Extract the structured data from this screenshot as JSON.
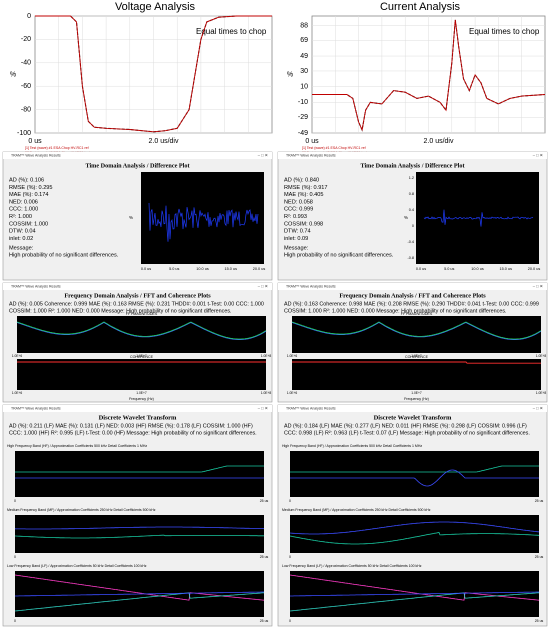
{
  "voltage_plot": {
    "title": "Voltage Analysis",
    "annotation": "Equal times to chop",
    "y_unit": "%",
    "x_start": "0 us",
    "x_div": "2.0 us/div",
    "legend": [
      "[1] Test (wave) #1 ESA Chop HV-RC1 ref",
      "[2] Test (wave) #2 ESA Chop HV-RC1 test"
    ],
    "color": "#c00000",
    "xlim": [
      0,
      20
    ],
    "ylim": [
      -100,
      0
    ],
    "yticks": [
      0,
      -20,
      -40,
      -60,
      -80,
      -100
    ],
    "x": [
      0,
      3,
      3.5,
      4,
      4.5,
      5,
      6,
      8,
      10,
      11,
      12,
      13,
      14,
      14.5,
      15.5,
      17,
      20
    ],
    "values": [
      0,
      0,
      -5,
      -60,
      -90,
      -95,
      -96,
      -97,
      -99,
      -98,
      -96,
      -80,
      -20,
      -5,
      -1,
      0,
      0
    ]
  },
  "current_plot": {
    "title": "Current Analysis",
    "annotation": "Equal times to chop",
    "y_unit": "%",
    "x_start": "0 us",
    "x_div": "2.0 us/div",
    "legend": [
      "[1] Test (wave) #1 ESA Chop HV-RC1 ref",
      "[2] Test (wave) #2 ESA Chop HV-RC1 test"
    ],
    "color": "#c00000",
    "xlim": [
      0,
      20
    ],
    "ylim": [
      -49,
      100
    ],
    "yticks": [
      88,
      69,
      49,
      30,
      10,
      -10,
      -29,
      -49
    ],
    "x": [
      0,
      3,
      3.5,
      4,
      4.3,
      4.6,
      5,
      6,
      7,
      8,
      9,
      10,
      11,
      11.5,
      12,
      12.3,
      12.6,
      13,
      13.5,
      14,
      14.5,
      15,
      16,
      17,
      18,
      20
    ],
    "values": [
      0,
      0,
      -5,
      -35,
      -45,
      -20,
      -10,
      -12,
      5,
      3,
      -5,
      -2,
      -10,
      -20,
      40,
      95,
      60,
      20,
      5,
      25,
      15,
      -5,
      -12,
      -5,
      -2,
      0
    ]
  },
  "window_title": "TRAM™ Wave Analysis Results",
  "time_domain": {
    "heading": "Time Domain Analysis / Difference Plot",
    "x_ticks": [
      "0.0 us",
      "5.0 us",
      "10.0 us",
      "15.0 us",
      "20.0 us"
    ],
    "y_unit": "%",
    "message_label": "Message:",
    "left": {
      "stats": [
        "AD (%): 0.106",
        "RMSE (%): 0.295",
        "MAE (%): 0.174",
        "NED: 0.006",
        "CCC: 1.000",
        "R²: 1.000",
        "COSSIM: 1.000",
        "DTW: 0.04",
        "inlet: 0.02"
      ],
      "message": "High probability of no significant differences."
    },
    "right": {
      "stats": [
        "AD (%): 0.840",
        "RMSE (%): 0.917",
        "MAE (%): 0.405",
        "NED: 0.058",
        "CCC: 0.999",
        "R²: 0.993",
        "COSSIM: 0.998",
        "DTW: 0.74",
        "inlet: 0.09"
      ],
      "message": "High probability of no significant differences.",
      "y_ticks": [
        "1.2",
        "0.8",
        "0.4",
        "0",
        "-0.4",
        "-0.8"
      ]
    }
  },
  "frequency_domain": {
    "heading": "Frequency Domain Analysis / FFT and Coherence Plots",
    "fft_label": "FFT MAGNITUDES",
    "coherence_label": "COHERENCE",
    "x_label": "Frequency (Hz)",
    "x_ticks": [
      "1.0E+6",
      "1.0E+7",
      "1.0E+8"
    ],
    "left": {
      "lines": [
        "AD (%): 0.005  Coherence: 0.999  MAE (%): 0.163  RMSE (%): 0.231  THDD#: 0.001  t-Test: 0.00  CCC: 1.000",
        "COSSIM: 1.000  R²: 1.000  NED: 0.000     Message: High probability of no significant differences."
      ]
    },
    "right": {
      "lines": [
        "AD (%): 0.163  Coherence: 0.998  MAE (%): 0.208  RMSE (%): 0.290  THDD#: 0.041  t-Test: 0.00  CCC: 0.999",
        "COSSIM: 1.000  R²: 1.000  NED: 0.000     Message: High probability of no significant differences."
      ]
    }
  },
  "wavelet": {
    "heading": "Discrete Wavelet Transform",
    "bands": [
      "High Frequency Band (HF) / Approximation Coefficients 500 kHz   Detail Coefficients 1 MHz",
      "Medium Frequency Band (MF) / Approximation Coefficients 250 kHz   Detail Coefficients 500 kHz",
      "Low Frequency Band (LF) / Approximation Coefficients 50 kHz   Detail Coefficients 100 kHz"
    ],
    "x_start": "0",
    "x_end": "25 us",
    "left": {
      "lines": [
        "AD (%): 0.211 (LF)  MAE (%): 0.131 (LF)  NED: 0.003 (HF)  RMSE (%): 0.178 (LF)  COSSIM: 1.000 (HF)",
        "CCC: 1.000 (HF)  R²: 0.995 (LF)  t-Test: 0.00 (HF)     Message: High probability of no significant differences."
      ]
    },
    "right": {
      "lines": [
        "AD (%): 0.184 (LF)  MAE (%): 0.277 (LF)  NED: 0.011 (HF)  RMSE (%): 0.298 (LF)  COSSIM: 0.996 (LF)",
        "CCC: 0.998 (LF)  R²: 0.963 (LF)  t-Test: 0.07 (LF)     Message: High probability of no significant differences."
      ]
    }
  }
}
